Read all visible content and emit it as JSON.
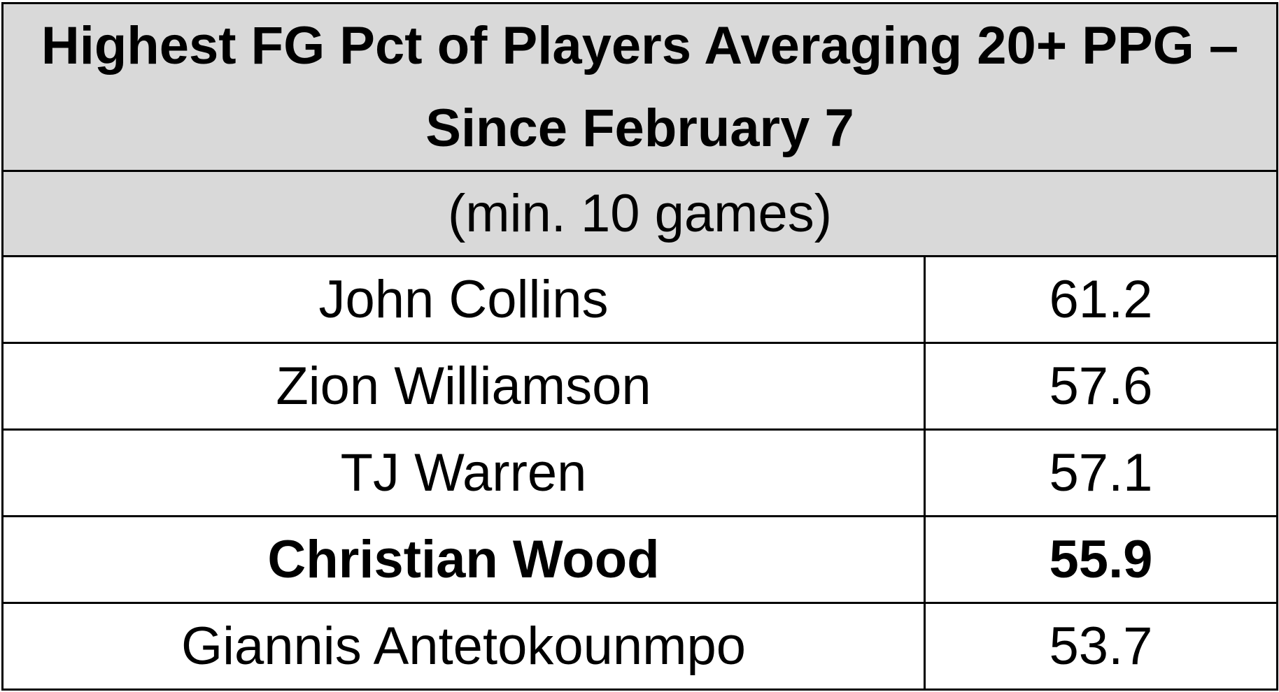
{
  "chart_data": {
    "type": "table",
    "title": "Highest FG Pct of Players Averaging 20+ PPG – Since February 7",
    "subtitle": "(min. 10 games)",
    "rows": [
      {
        "player": "John Collins",
        "fg_pct": "61.2",
        "highlight": false
      },
      {
        "player": "Zion Williamson",
        "fg_pct": "57.6",
        "highlight": false
      },
      {
        "player": "TJ Warren",
        "fg_pct": "57.1",
        "highlight": false
      },
      {
        "player": "Christian Wood",
        "fg_pct": "55.9",
        "highlight": true
      },
      {
        "player": "Giannis Antetokounmpo",
        "fg_pct": "53.7",
        "highlight": false
      }
    ]
  },
  "colors": {
    "header_bg": "#d9d9d9",
    "border": "#000000",
    "text": "#000000",
    "body_bg": "#ffffff"
  }
}
